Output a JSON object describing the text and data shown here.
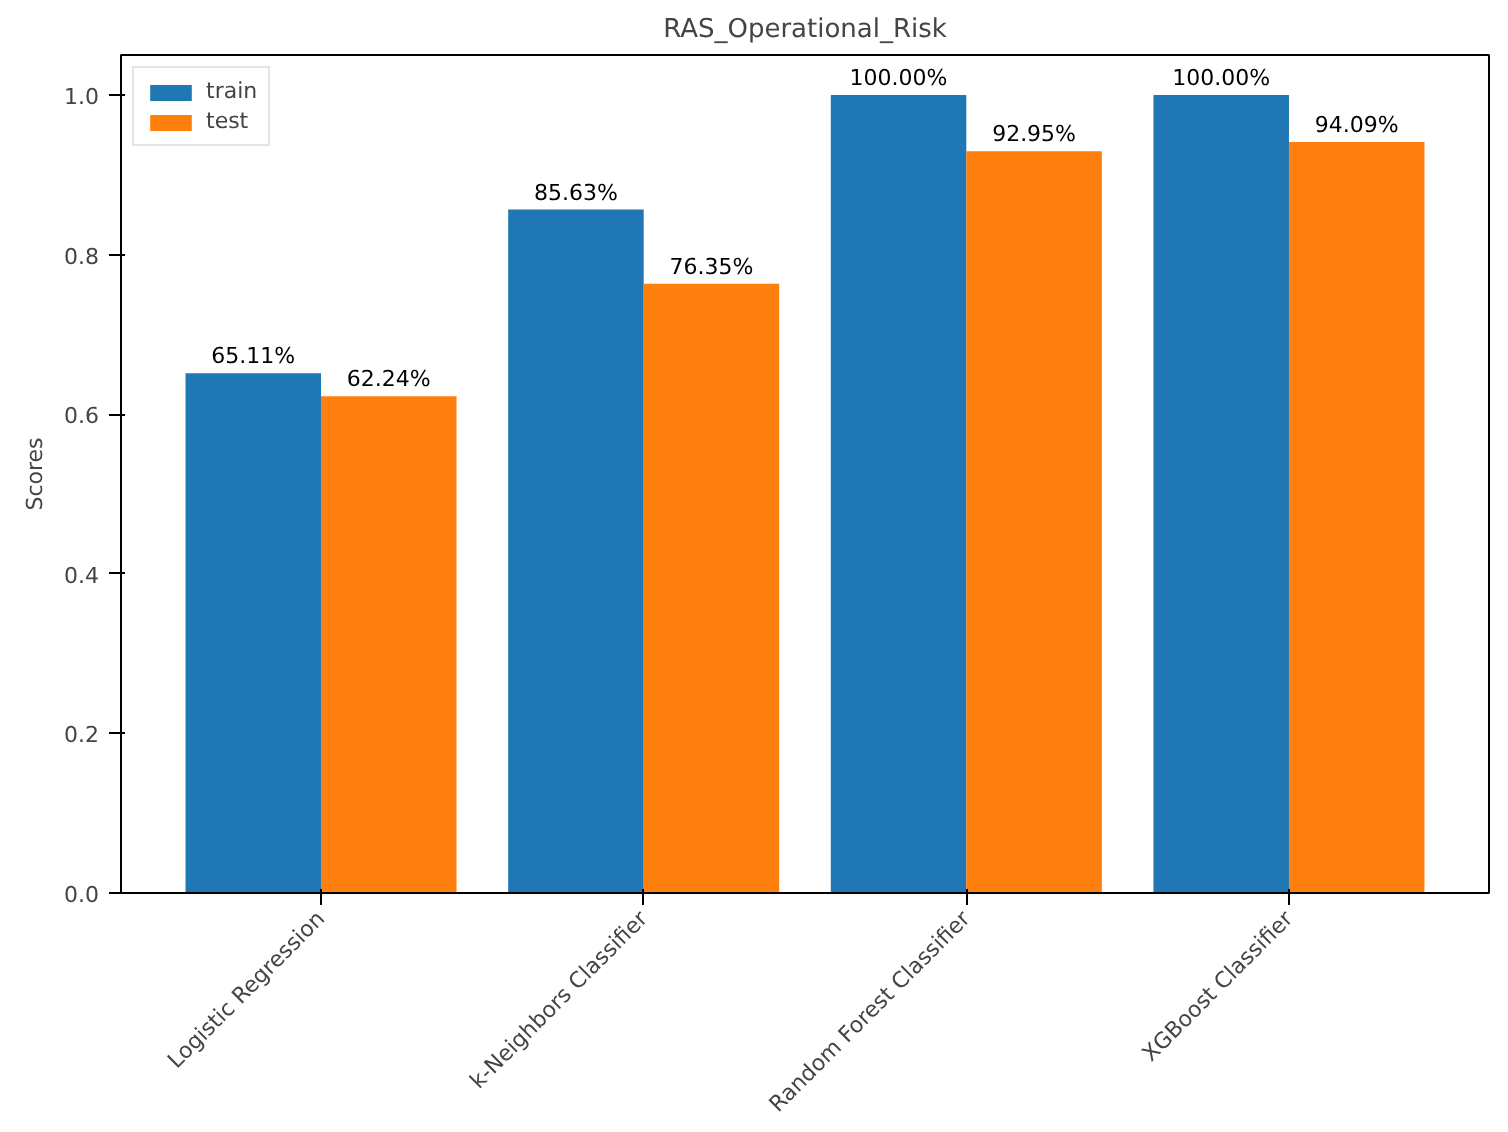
{
  "chart_data": {
    "type": "bar",
    "title": "RAS_Operational_Risk",
    "ylabel": "Scores",
    "categories": [
      "Logistic Regression",
      "k-Neighbors Classifier",
      "Random Forest Classifier",
      "XGBoost Classifier"
    ],
    "series": [
      {
        "name": "train",
        "color": "#1f77b4",
        "values": [
          0.6511,
          0.8563,
          1.0,
          1.0
        ],
        "value_labels": [
          "65.11%",
          "85.63%",
          "100.00%",
          "100.00%"
        ]
      },
      {
        "name": "test",
        "color": "#ff7f0e",
        "values": [
          0.6224,
          0.7635,
          0.9295,
          0.9409
        ],
        "value_labels": [
          "62.24%",
          "76.35%",
          "92.95%",
          "94.09%"
        ]
      }
    ],
    "ylim": [
      0,
      1.05
    ],
    "yticks": [
      {
        "value": 0,
        "label": "0.0"
      },
      {
        "value": 0.2,
        "label": "0.2"
      },
      {
        "value": 0.4,
        "label": "0.4"
      },
      {
        "value": 0.6,
        "label": "0.6"
      },
      {
        "value": 0.8,
        "label": "0.8"
      },
      {
        "value": 1.0,
        "label": "1.0"
      }
    ],
    "grid": false,
    "legend": "top left"
  }
}
